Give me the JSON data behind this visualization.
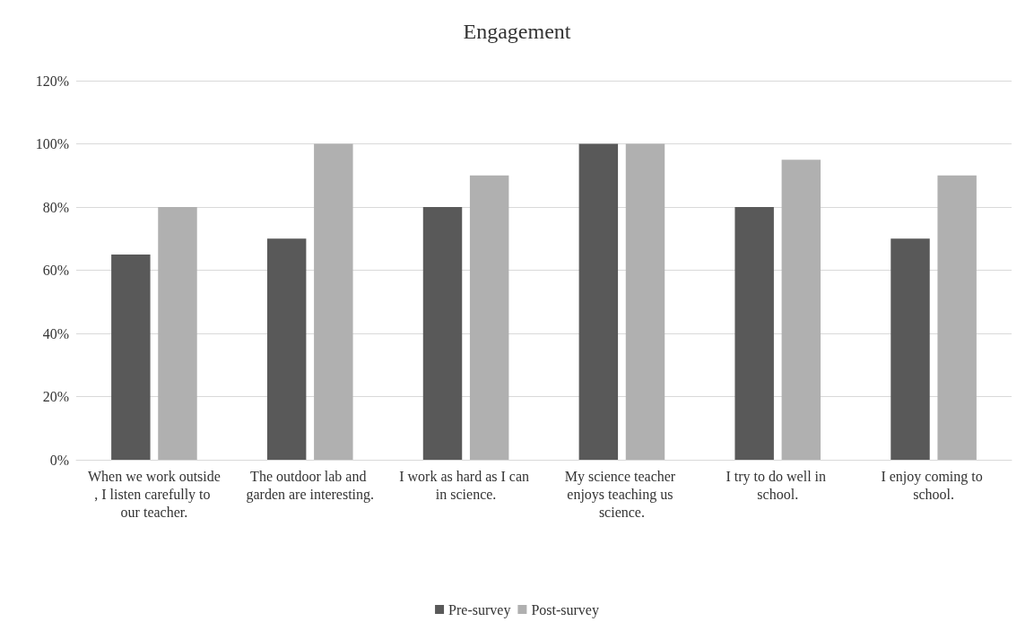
{
  "chart_data": {
    "type": "bar",
    "title": "Engagement",
    "categories": [
      "When we work outside, I listen carefully to our teacher.",
      "The outdoor lab and garden are interesting.",
      "I work as hard as I can in science.",
      "My science teacher enjoys teaching us science.",
      "I try to do well in school.",
      "I enjoy coming to school."
    ],
    "series": [
      {
        "name": "Pre-survey",
        "color": "#595959",
        "values": [
          65,
          70,
          80,
          100,
          80,
          70
        ]
      },
      {
        "name": "Post-survey",
        "color": "#b0b0b0",
        "values": [
          80,
          100,
          90,
          100,
          95,
          90
        ]
      }
    ],
    "ylim": [
      0,
      120
    ],
    "yticks": [
      {
        "value": 0,
        "label": "0%"
      },
      {
        "value": 20,
        "label": "20%"
      },
      {
        "value": 40,
        "label": "40%"
      },
      {
        "value": 60,
        "label": "60%"
      },
      {
        "value": 80,
        "label": "80%"
      },
      {
        "value": 100,
        "label": "100%"
      },
      {
        "value": 120,
        "label": "120%"
      }
    ],
    "grid": "y",
    "legend": "bottom"
  }
}
